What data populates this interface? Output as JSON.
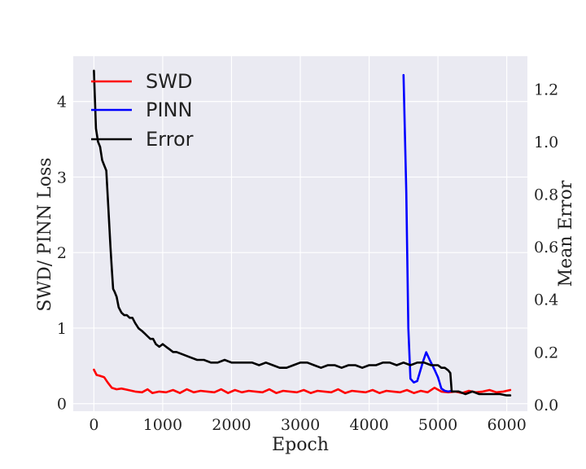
{
  "chart_data": {
    "type": "line",
    "title": "",
    "xlabel": "Epoch",
    "ylabel_left": "SWD/ PINN Loss",
    "ylabel_right": "Mean Error",
    "xlim": [
      -300,
      6300
    ],
    "ylim_left": [
      -0.1,
      4.6
    ],
    "ylim_right": [
      -0.025,
      1.325
    ],
    "x_ticks": [
      0,
      1000,
      2000,
      3000,
      4000,
      5000,
      6000
    ],
    "y_left_ticks": [
      0,
      1,
      2,
      3,
      4
    ],
    "y_right_ticks": [
      "0.0",
      "0.2",
      "0.4",
      "0.6",
      "0.8",
      "1.0",
      "1.2"
    ],
    "grid": true,
    "legend_position": "top-left",
    "series": [
      {
        "name": "SWD",
        "color": "#ff0000",
        "axis": "left",
        "x": [
          0,
          40,
          80,
          150,
          200,
          260,
          330,
          400,
          500,
          600,
          700,
          780,
          850,
          950,
          1050,
          1150,
          1250,
          1350,
          1450,
          1550,
          1650,
          1750,
          1850,
          1950,
          2050,
          2150,
          2250,
          2350,
          2450,
          2550,
          2650,
          2750,
          2850,
          2950,
          3050,
          3150,
          3250,
          3350,
          3450,
          3550,
          3650,
          3750,
          3850,
          3950,
          4050,
          4150,
          4250,
          4350,
          4450,
          4550,
          4650,
          4750,
          4850,
          4950,
          5050,
          5150,
          5250,
          5350,
          5450,
          5550,
          5650,
          5750,
          5850,
          5950,
          6050
        ],
        "y": [
          0.45,
          0.38,
          0.37,
          0.35,
          0.28,
          0.21,
          0.19,
          0.2,
          0.18,
          0.16,
          0.15,
          0.19,
          0.14,
          0.16,
          0.15,
          0.18,
          0.14,
          0.19,
          0.15,
          0.17,
          0.16,
          0.15,
          0.19,
          0.14,
          0.18,
          0.15,
          0.17,
          0.16,
          0.15,
          0.19,
          0.14,
          0.17,
          0.16,
          0.15,
          0.18,
          0.14,
          0.17,
          0.16,
          0.15,
          0.19,
          0.14,
          0.17,
          0.16,
          0.15,
          0.18,
          0.14,
          0.17,
          0.16,
          0.15,
          0.18,
          0.14,
          0.17,
          0.15,
          0.21,
          0.16,
          0.15,
          0.16,
          0.14,
          0.17,
          0.15,
          0.16,
          0.18,
          0.15,
          0.16,
          0.18
        ]
      },
      {
        "name": "PINN",
        "color": "#0000ff",
        "axis": "left",
        "x": [
          4500,
          4540,
          4570,
          4600,
          4650,
          4700,
          4780,
          4830,
          4880,
          4950,
          5000,
          5050,
          5100,
          5150,
          5200
        ],
        "y": [
          4.35,
          2.8,
          1.0,
          0.33,
          0.28,
          0.3,
          0.55,
          0.68,
          0.58,
          0.45,
          0.35,
          0.2,
          0.17,
          0.16,
          0.17
        ]
      },
      {
        "name": "Error",
        "color": "#000000",
        "axis": "right",
        "x": [
          0,
          30,
          60,
          90,
          120,
          150,
          180,
          210,
          240,
          260,
          280,
          300,
          330,
          360,
          400,
          440,
          480,
          520,
          560,
          600,
          650,
          700,
          740,
          780,
          820,
          860,
          900,
          950,
          1000,
          1050,
          1100,
          1150,
          1200,
          1300,
          1400,
          1500,
          1600,
          1700,
          1800,
          1900,
          2000,
          2100,
          2200,
          2300,
          2400,
          2500,
          2600,
          2700,
          2800,
          2900,
          3000,
          3100,
          3200,
          3300,
          3400,
          3500,
          3600,
          3700,
          3800,
          3900,
          4000,
          4100,
          4200,
          4300,
          4400,
          4500,
          4600,
          4700,
          4800,
          4900,
          5000,
          5050,
          5100,
          5150,
          5180,
          5200,
          5250,
          5300,
          5400,
          5500,
          5600,
          5700,
          5800,
          5900,
          6000,
          6050
        ],
        "y": [
          1.27,
          1.05,
          1.0,
          0.98,
          0.93,
          0.91,
          0.89,
          0.75,
          0.6,
          0.52,
          0.44,
          0.43,
          0.41,
          0.37,
          0.35,
          0.34,
          0.34,
          0.33,
          0.33,
          0.31,
          0.29,
          0.28,
          0.27,
          0.26,
          0.25,
          0.25,
          0.23,
          0.22,
          0.23,
          0.22,
          0.21,
          0.2,
          0.2,
          0.19,
          0.18,
          0.17,
          0.17,
          0.16,
          0.16,
          0.17,
          0.16,
          0.16,
          0.16,
          0.16,
          0.15,
          0.16,
          0.15,
          0.14,
          0.14,
          0.15,
          0.16,
          0.16,
          0.15,
          0.14,
          0.15,
          0.15,
          0.14,
          0.15,
          0.15,
          0.14,
          0.15,
          0.15,
          0.16,
          0.16,
          0.15,
          0.16,
          0.15,
          0.16,
          0.16,
          0.15,
          0.15,
          0.14,
          0.14,
          0.13,
          0.12,
          0.05,
          0.05,
          0.05,
          0.04,
          0.05,
          0.04,
          0.04,
          0.04,
          0.04,
          0.035,
          0.035
        ]
      }
    ]
  }
}
